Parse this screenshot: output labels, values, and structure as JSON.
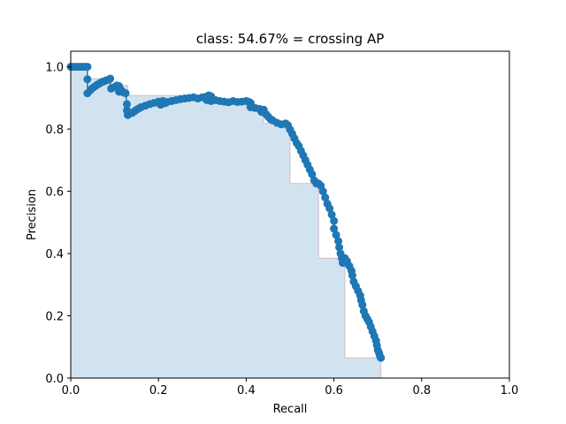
{
  "chart_data": {
    "type": "line",
    "title": "class: 54.67% = crossing AP",
    "xlabel": "Recall",
    "ylabel": "Precision",
    "xlim": [
      0.0,
      1.0
    ],
    "ylim": [
      0.0,
      1.05
    ],
    "xticks": [
      "0.0",
      "0.2",
      "0.4",
      "0.6",
      "0.8",
      "1.0"
    ],
    "yticks": [
      "0.0",
      "0.2",
      "0.4",
      "0.6",
      "0.8",
      "1.0"
    ],
    "grid": false,
    "colors": {
      "series": "#1f77b4",
      "fill": "#a6c8e2",
      "envelope": "#c79aa6"
    },
    "series": [
      {
        "points": [
          [
            0.0,
            1.0
          ],
          [
            0.005,
            1.0
          ],
          [
            0.01,
            1.0
          ],
          [
            0.015,
            1.0
          ],
          [
            0.02,
            1.0
          ],
          [
            0.025,
            1.0
          ],
          [
            0.03,
            1.0
          ],
          [
            0.035,
            1.0
          ],
          [
            0.038,
            1.0
          ],
          [
            0.038,
            0.96
          ],
          [
            0.038,
            0.915
          ],
          [
            0.045,
            0.925
          ],
          [
            0.05,
            0.932
          ],
          [
            0.055,
            0.937
          ],
          [
            0.06,
            0.942
          ],
          [
            0.065,
            0.946
          ],
          [
            0.07,
            0.95
          ],
          [
            0.075,
            0.953
          ],
          [
            0.08,
            0.956
          ],
          [
            0.085,
            0.958
          ],
          [
            0.09,
            0.962
          ],
          [
            0.092,
            0.93
          ],
          [
            0.1,
            0.935
          ],
          [
            0.105,
            0.94
          ],
          [
            0.11,
            0.938
          ],
          [
            0.11,
            0.92
          ],
          [
            0.115,
            0.925
          ],
          [
            0.12,
            0.918
          ],
          [
            0.125,
            0.915
          ],
          [
            0.128,
            0.88
          ],
          [
            0.128,
            0.86
          ],
          [
            0.13,
            0.845
          ],
          [
            0.135,
            0.85
          ],
          [
            0.14,
            0.852
          ],
          [
            0.145,
            0.857
          ],
          [
            0.15,
            0.862
          ],
          [
            0.155,
            0.866
          ],
          [
            0.16,
            0.87
          ],
          [
            0.17,
            0.875
          ],
          [
            0.18,
            0.88
          ],
          [
            0.19,
            0.884
          ],
          [
            0.2,
            0.888
          ],
          [
            0.21,
            0.89
          ],
          [
            0.205,
            0.878
          ],
          [
            0.215,
            0.883
          ],
          [
            0.22,
            0.887
          ],
          [
            0.23,
            0.89
          ],
          [
            0.24,
            0.893
          ],
          [
            0.25,
            0.896
          ],
          [
            0.26,
            0.898
          ],
          [
            0.27,
            0.9
          ],
          [
            0.28,
            0.902
          ],
          [
            0.29,
            0.898
          ],
          [
            0.3,
            0.902
          ],
          [
            0.31,
            0.905
          ],
          [
            0.315,
            0.908
          ],
          [
            0.32,
            0.905
          ],
          [
            0.31,
            0.893
          ],
          [
            0.32,
            0.89
          ],
          [
            0.33,
            0.893
          ],
          [
            0.34,
            0.89
          ],
          [
            0.35,
            0.888
          ],
          [
            0.36,
            0.886
          ],
          [
            0.37,
            0.89
          ],
          [
            0.38,
            0.887
          ],
          [
            0.39,
            0.888
          ],
          [
            0.4,
            0.89
          ],
          [
            0.405,
            0.888
          ],
          [
            0.41,
            0.884
          ],
          [
            0.41,
            0.87
          ],
          [
            0.42,
            0.868
          ],
          [
            0.43,
            0.865
          ],
          [
            0.435,
            0.855
          ],
          [
            0.44,
            0.862
          ],
          [
            0.445,
            0.848
          ],
          [
            0.45,
            0.84
          ],
          [
            0.455,
            0.832
          ],
          [
            0.46,
            0.828
          ],
          [
            0.47,
            0.82
          ],
          [
            0.48,
            0.815
          ],
          [
            0.49,
            0.818
          ],
          [
            0.495,
            0.812
          ],
          [
            0.5,
            0.798
          ],
          [
            0.505,
            0.785
          ],
          [
            0.51,
            0.77
          ],
          [
            0.515,
            0.755
          ],
          [
            0.52,
            0.745
          ],
          [
            0.525,
            0.73
          ],
          [
            0.53,
            0.715
          ],
          [
            0.535,
            0.7
          ],
          [
            0.54,
            0.685
          ],
          [
            0.545,
            0.67
          ],
          [
            0.55,
            0.655
          ],
          [
            0.555,
            0.635
          ],
          [
            0.56,
            0.625
          ],
          [
            0.565,
            0.625
          ],
          [
            0.57,
            0.618
          ],
          [
            0.575,
            0.6
          ],
          [
            0.58,
            0.58
          ],
          [
            0.585,
            0.56
          ],
          [
            0.59,
            0.545
          ],
          [
            0.595,
            0.525
          ],
          [
            0.6,
            0.505
          ],
          [
            0.6,
            0.48
          ],
          [
            0.605,
            0.46
          ],
          [
            0.61,
            0.44
          ],
          [
            0.612,
            0.42
          ],
          [
            0.615,
            0.4
          ],
          [
            0.618,
            0.385
          ],
          [
            0.62,
            0.37
          ],
          [
            0.625,
            0.385
          ],
          [
            0.63,
            0.375
          ],
          [
            0.635,
            0.36
          ],
          [
            0.64,
            0.345
          ],
          [
            0.642,
            0.33
          ],
          [
            0.645,
            0.31
          ],
          [
            0.65,
            0.295
          ],
          [
            0.655,
            0.28
          ],
          [
            0.66,
            0.265
          ],
          [
            0.662,
            0.25
          ],
          [
            0.665,
            0.235
          ],
          [
            0.668,
            0.215
          ],
          [
            0.672,
            0.2
          ],
          [
            0.676,
            0.19
          ],
          [
            0.68,
            0.18
          ],
          [
            0.684,
            0.165
          ],
          [
            0.688,
            0.15
          ],
          [
            0.692,
            0.135
          ],
          [
            0.696,
            0.12
          ],
          [
            0.698,
            0.105
          ],
          [
            0.7,
            0.09
          ],
          [
            0.703,
            0.08
          ],
          [
            0.705,
            0.07
          ],
          [
            0.707,
            0.065
          ]
        ]
      }
    ],
    "envelope": [
      [
        0.0,
        1.0
      ],
      [
        0.038,
        1.0
      ],
      [
        0.038,
        0.962
      ],
      [
        0.09,
        0.962
      ],
      [
        0.09,
        0.94
      ],
      [
        0.13,
        0.94
      ],
      [
        0.13,
        0.908
      ],
      [
        0.315,
        0.908
      ],
      [
        0.315,
        0.89
      ],
      [
        0.4,
        0.89
      ],
      [
        0.4,
        0.87
      ],
      [
        0.42,
        0.87
      ],
      [
        0.42,
        0.862
      ],
      [
        0.44,
        0.862
      ],
      [
        0.44,
        0.818
      ],
      [
        0.49,
        0.818
      ],
      [
        0.49,
        0.798
      ],
      [
        0.5,
        0.798
      ],
      [
        0.5,
        0.625
      ],
      [
        0.565,
        0.625
      ],
      [
        0.565,
        0.385
      ],
      [
        0.625,
        0.385
      ],
      [
        0.625,
        0.065
      ],
      [
        0.707,
        0.065
      ],
      [
        0.707,
        0.0
      ]
    ]
  }
}
